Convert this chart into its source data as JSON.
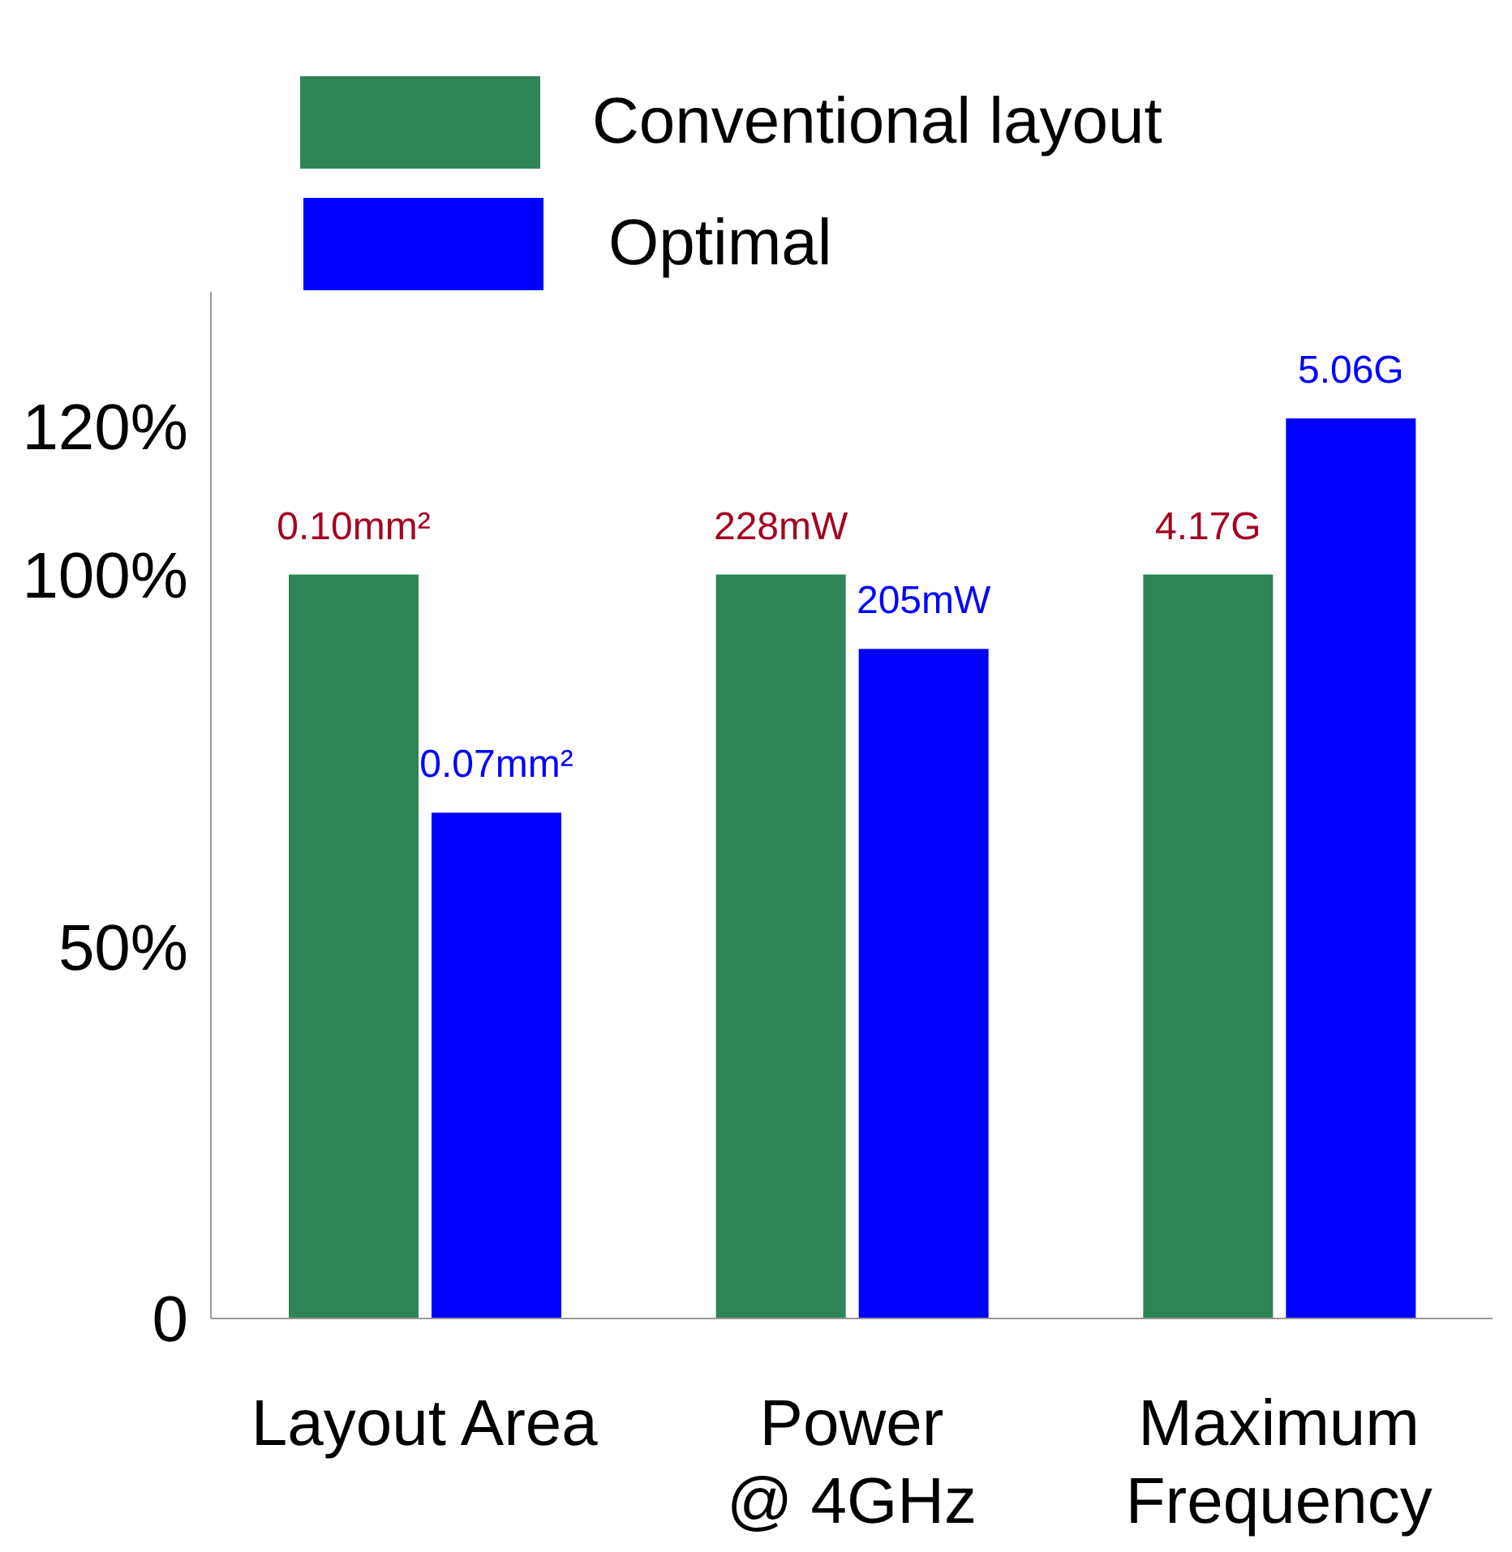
{
  "chart_data": {
    "type": "bar",
    "categories": [
      "Layout Area",
      "Power\n@ 4GHz",
      "Maximum\nFrequency"
    ],
    "series": [
      {
        "name": "Conventional layout",
        "color": "#2e8457",
        "values": [
          100,
          100,
          100
        ]
      },
      {
        "name": "Optimal",
        "color": "#0000ff",
        "values": [
          68,
          90,
          121
        ]
      }
    ],
    "annotations": [
      {
        "text": "0.10mm²",
        "x": "Layout Area",
        "y": 100
      },
      {
        "text": "228mW",
        "x": "Power\n@ 4GHz",
        "y": 100
      },
      {
        "text": "4.17G",
        "x": "Maximum\nFrequency",
        "y": 100
      },
      {
        "text": "0.07mm²",
        "x": "Layout Area",
        "y": 68
      },
      {
        "text": "205mW",
        "x": "Power\n@ 4GHz",
        "y": 90
      },
      {
        "text": "5.06G",
        "x": "Maximum\nFrequency",
        "y": 121
      }
    ],
    "ylim": [
      0,
      138
    ],
    "yticks": [
      0,
      {
        "value": 50,
        "label": "50%"
      },
      {
        "value": 100,
        "label": "100%"
      },
      {
        "value": 120,
        "label": "120%"
      }
    ],
    "grid": false,
    "legend": "top left"
  }
}
